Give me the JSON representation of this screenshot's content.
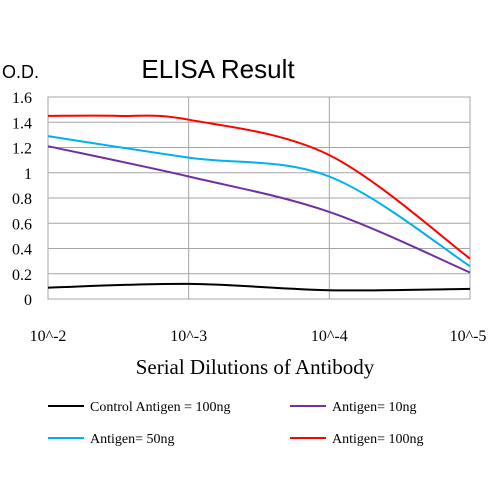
{
  "chart_data": {
    "type": "line",
    "title": "ELISA Result",
    "ylabel": "O.D.",
    "xlabel": "Serial Dilutions of Antibody",
    "x_categories": [
      "10^-2",
      "10^-3",
      "10^-4",
      "10^-5"
    ],
    "y_ticks": [
      "0",
      "0.2",
      "0.4",
      "0.6",
      "0.8",
      "1",
      "1.2",
      "1.4",
      "1.6"
    ],
    "ylim": [
      0,
      1.6
    ],
    "grid": true,
    "legend_position": "bottom",
    "series": [
      {
        "name": "Control Antigen = 100ng",
        "color": "#000000",
        "points": [
          [
            0,
            0.09
          ],
          [
            1,
            0.12
          ],
          [
            2,
            0.07
          ],
          [
            3,
            0.08
          ]
        ]
      },
      {
        "name": "Antigen= 10ng",
        "color": "#7030a0",
        "points": [
          [
            0,
            1.21
          ],
          [
            1,
            0.97
          ],
          [
            2,
            0.69
          ],
          [
            3,
            0.21
          ]
        ]
      },
      {
        "name": "Antigen= 50ng",
        "color": "#00b0f0",
        "points": [
          [
            0,
            1.29
          ],
          [
            1,
            1.12
          ],
          [
            2,
            0.97
          ],
          [
            3,
            0.26
          ]
        ]
      },
      {
        "name": "Antigen= 100ng",
        "color": "#ff0000",
        "points": [
          [
            0,
            1.45
          ],
          [
            0.5,
            1.45
          ],
          [
            1,
            1.42
          ],
          [
            2,
            1.14
          ],
          [
            3,
            0.32
          ]
        ]
      }
    ]
  }
}
